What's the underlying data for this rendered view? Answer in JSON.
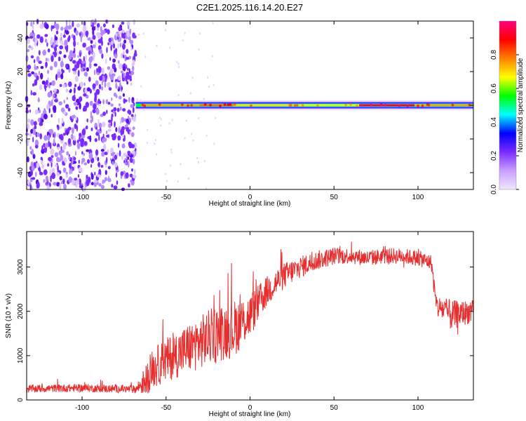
{
  "title": "C2E1.2025.116.14.20.E27",
  "colors": {
    "line": "#e62e2e",
    "background": "#ffffff",
    "axes": "#000000"
  },
  "colorbar": {
    "label": "Normalized spectral amplitude",
    "ticks": [
      "0.0",
      "0.2",
      "0.4",
      "0.6",
      "0.8"
    ],
    "tick_values": [
      0,
      0.2,
      0.4,
      0.6,
      0.8
    ],
    "range": [
      0,
      1
    ],
    "colormap": [
      "#f2e6ff",
      "#c9a0ff",
      "#7a2bff",
      "#0000ff",
      "#00ffff",
      "#00ff00",
      "#ffff00",
      "#ff8000",
      "#ff0000",
      "#ff0080"
    ]
  },
  "chart_data": [
    {
      "type": "heatmap",
      "xlabel": "Height of straight line (km)",
      "ylabel": "Frequency (Hz)",
      "xlim": [
        -133,
        133
      ],
      "ylim": [
        -50,
        50
      ],
      "x_ticks": [
        "-100",
        "-50",
        "0",
        "50",
        "100"
      ],
      "x_tick_values": [
        -100,
        -50,
        0,
        50,
        100
      ],
      "y_ticks": [
        "-40",
        "-20",
        "0",
        "20",
        "40"
      ],
      "y_tick_values": [
        -40,
        -20,
        0,
        20,
        40
      ],
      "noise_region_x": [
        -133,
        -68
      ],
      "band": {
        "center_frequency": 0,
        "half_width_hz": 2,
        "x_range": [
          -68,
          133
        ],
        "peak_amplitude_segments": [
          {
            "x": [
              -65,
              -30
            ],
            "amplitude": 0.75
          },
          {
            "x": [
              -30,
              -10
            ],
            "amplitude": 0.8
          },
          {
            "x": [
              -10,
              30
            ],
            "amplitude": 0.7
          },
          {
            "x": [
              30,
              65
            ],
            "amplitude": 0.65
          },
          {
            "x": [
              65,
              98
            ],
            "amplitude": 0.9
          },
          {
            "x": [
              98,
              133
            ],
            "amplitude": 0.75
          }
        ]
      }
    },
    {
      "type": "line",
      "xlabel": "Height of straight line (km)",
      "ylabel": "SNR (10 * v/v)",
      "xlim": [
        -133,
        133
      ],
      "ylim": [
        0,
        3800
      ],
      "x_ticks": [
        "-100",
        "-50",
        "0",
        "50",
        "100"
      ],
      "x_tick_values": [
        -100,
        -50,
        0,
        50,
        100
      ],
      "y_ticks": [
        "0",
        "1000",
        "2000",
        "3000"
      ],
      "y_tick_values": [
        0,
        1000,
        2000,
        3000
      ],
      "series": [
        {
          "x": [
            -133,
            -120,
            -100,
            -80,
            -68,
            -62,
            -58,
            -50,
            -40,
            -30,
            -20,
            -10,
            0,
            10,
            20,
            30,
            40,
            50,
            60,
            70,
            80,
            90,
            100,
            108,
            111,
            115,
            120,
            125,
            133
          ],
          "values": [
            250,
            260,
            270,
            250,
            240,
            450,
            700,
            900,
            1100,
            1300,
            1500,
            1600,
            1900,
            2450,
            2800,
            3000,
            3150,
            3250,
            3250,
            3200,
            3250,
            3250,
            3200,
            3100,
            2100,
            2050,
            1900,
            1950,
            2000
          ],
          "noise_amplitude": [
            90,
            90,
            90,
            90,
            90,
            350,
            450,
            500,
            550,
            600,
            650,
            650,
            500,
            350,
            300,
            250,
            220,
            200,
            180,
            180,
            180,
            180,
            180,
            180,
            250,
            300,
            350,
            300,
            250
          ]
        }
      ]
    }
  ]
}
